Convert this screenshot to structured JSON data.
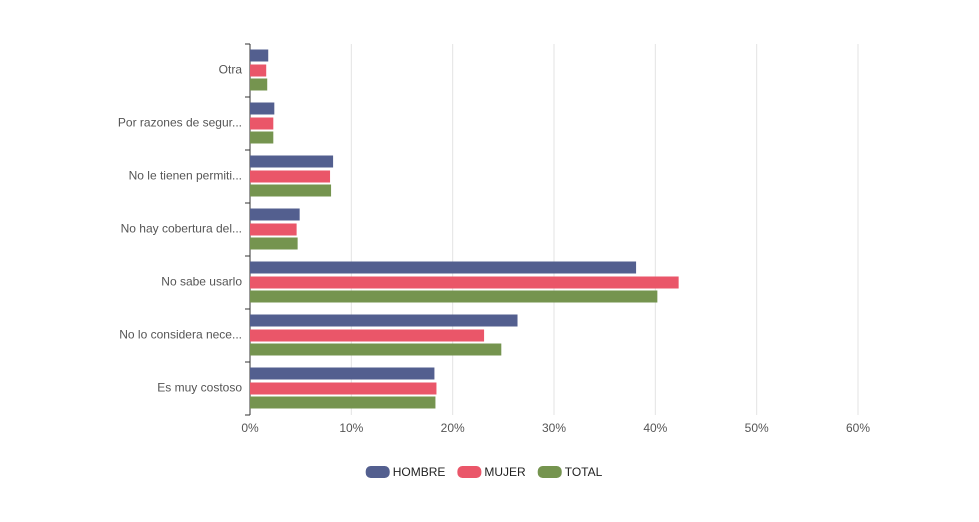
{
  "chart_data": {
    "type": "hbar",
    "categories": [
      "Otra",
      "Por razones de segur...",
      "No le tienen permiti...",
      "No hay cobertura del...",
      "No sabe usarlo",
      "No lo considera nece...",
      "Es muy costoso"
    ],
    "series": [
      {
        "name": "HOMBRE",
        "color": "#535f8f",
        "values": [
          1.8,
          2.4,
          8.2,
          4.9,
          38.1,
          26.4,
          18.2
        ]
      },
      {
        "name": "MUJER",
        "color": "#ea5669",
        "values": [
          1.6,
          2.3,
          7.9,
          4.6,
          42.3,
          23.1,
          18.4
        ]
      },
      {
        "name": "TOTAL",
        "color": "#75944f",
        "values": [
          1.7,
          2.3,
          8.0,
          4.7,
          40.2,
          24.8,
          18.3
        ]
      }
    ],
    "xlim": [
      0,
      60
    ],
    "xticks": [
      {
        "value": 0,
        "label": "0%"
      },
      {
        "value": 10,
        "label": "10%"
      },
      {
        "value": 20,
        "label": "20%"
      },
      {
        "value": 30,
        "label": "30%"
      },
      {
        "value": 40,
        "label": "40%"
      },
      {
        "value": 50,
        "label": "50%"
      },
      {
        "value": 60,
        "label": "60%"
      }
    ],
    "grid": true,
    "legend": "bottom"
  }
}
